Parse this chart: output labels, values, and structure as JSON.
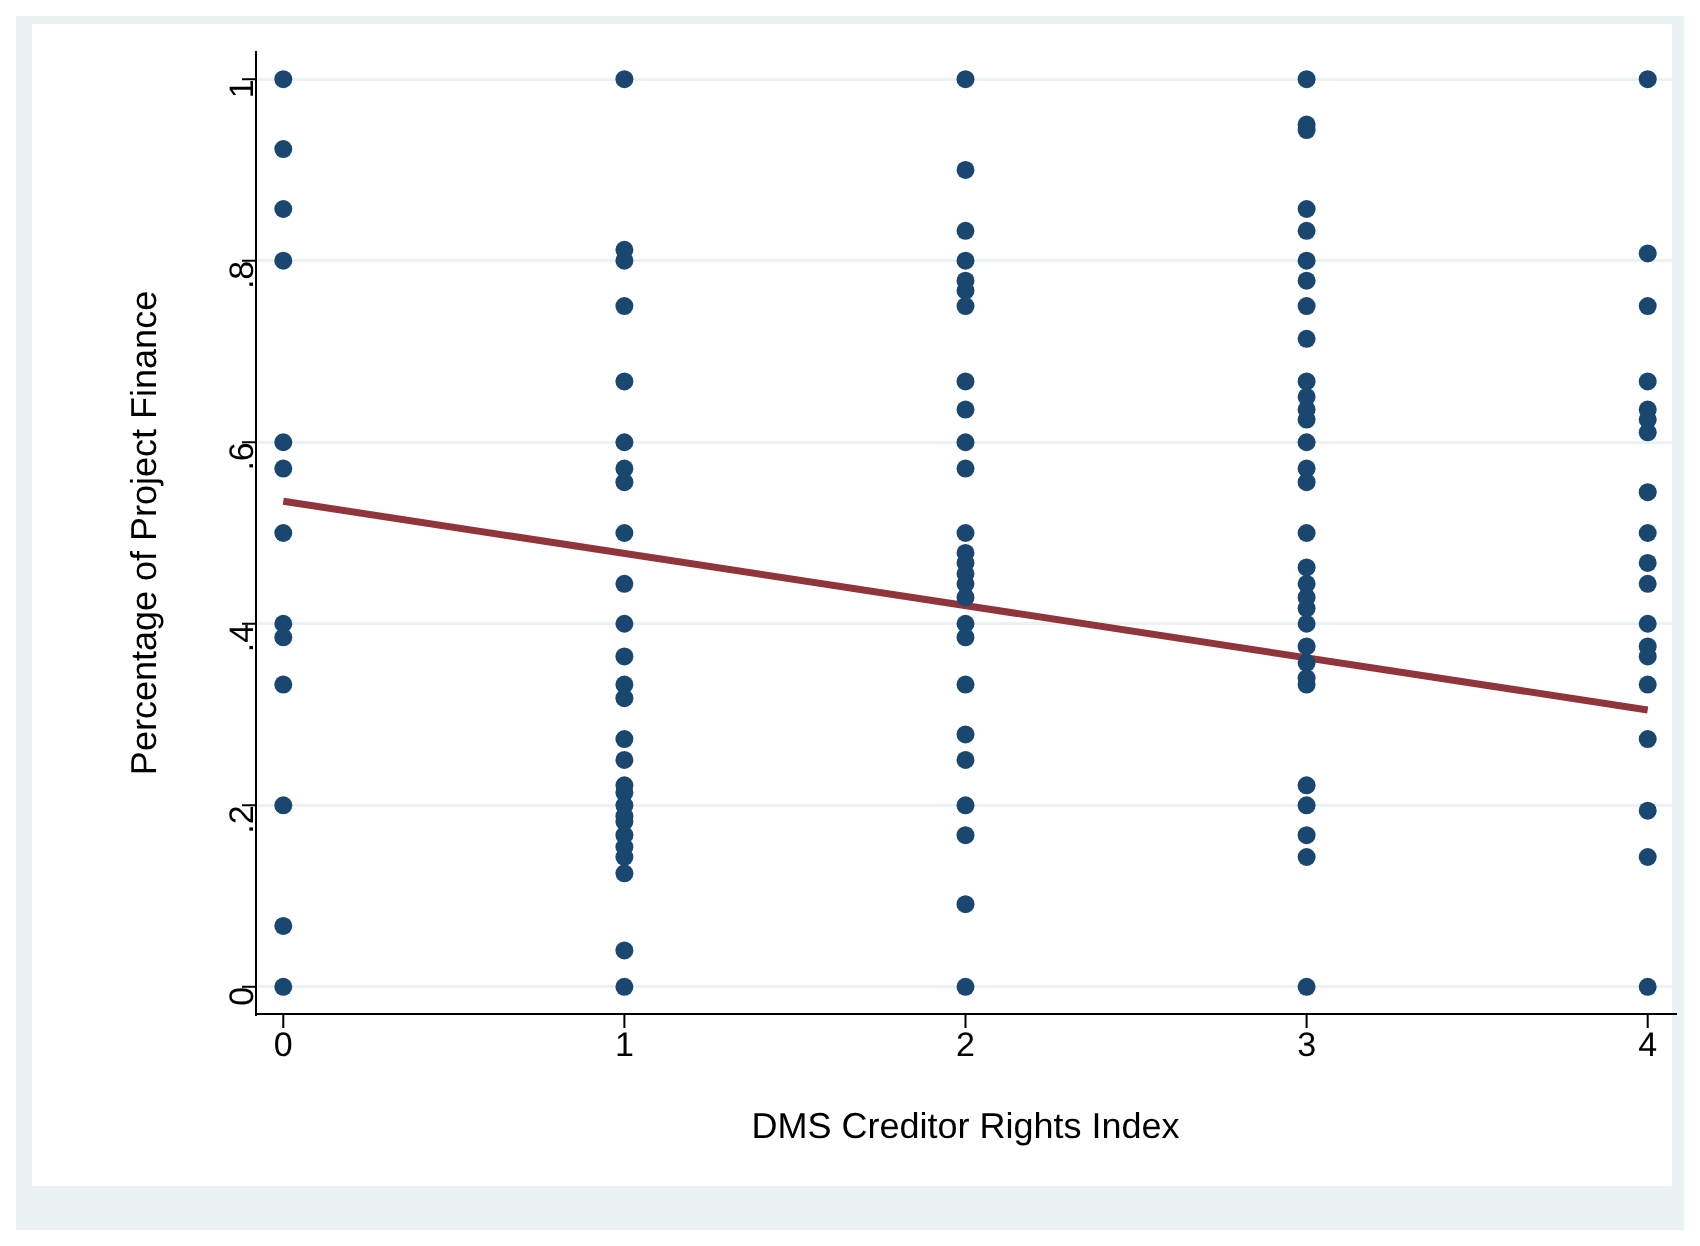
{
  "chart_data": {
    "type": "scatter",
    "xlabel": "DMS Creditor Rights Index",
    "ylabel": "Percentage of Project Finance",
    "xlim": [
      -0.08,
      4.08
    ],
    "ylim": [
      -0.03,
      1.03
    ],
    "xticks": [
      0,
      1,
      2,
      3,
      4
    ],
    "yticks": [
      0,
      {
        "value": 0.2,
        "label": ".2"
      },
      {
        "value": 0.4,
        "label": ".4"
      },
      {
        "value": 0.6,
        "label": ".6"
      },
      {
        "value": 0.8,
        "label": ".8"
      },
      1
    ],
    "grid": "y",
    "legend": false,
    "marker": "circle",
    "series": [
      {
        "color": "#1a476f",
        "x": [
          0,
          0,
          0,
          0,
          0,
          0,
          0,
          0,
          0,
          0,
          0,
          0,
          0,
          1,
          1,
          1,
          1,
          1,
          1,
          1,
          1,
          1,
          1,
          1,
          1,
          1,
          1,
          1,
          1,
          1,
          1,
          1,
          1,
          1,
          1,
          1,
          1,
          1,
          1,
          1,
          2,
          2,
          2,
          2,
          2,
          2,
          2,
          2,
          2,
          2,
          2,
          2,
          2,
          2,
          2,
          2,
          2,
          2,
          2,
          2,
          2,
          2,
          2,
          2,
          2,
          2,
          3,
          3,
          3,
          3,
          3,
          3,
          3,
          3,
          3,
          3,
          3,
          3,
          3,
          3,
          3,
          3,
          3,
          3,
          3,
          3,
          3,
          3,
          3,
          3,
          3,
          3,
          3,
          3,
          3,
          3,
          3,
          4,
          4,
          4,
          4,
          4,
          4,
          4,
          4,
          4,
          4,
          4,
          4,
          4,
          4,
          4,
          4,
          4,
          4,
          4
        ],
        "values": [
          1,
          0.923,
          0.857,
          0.8,
          0.6,
          0.571,
          0.5,
          0.4,
          0.385,
          0.333,
          0.2,
          0.067,
          0,
          1,
          0.812,
          0.8,
          0.75,
          0.667,
          0.6,
          0.571,
          0.556,
          0.5,
          0.444,
          0.4,
          0.364,
          0.333,
          0.318,
          0.273,
          0.25,
          0.222,
          0.214,
          0.2,
          0.188,
          0.182,
          0.167,
          0.154,
          0.143,
          0.125,
          0.04,
          0,
          1,
          0.9,
          0.833,
          0.8,
          0.778,
          0.767,
          0.75,
          0.667,
          0.636,
          0.6,
          0.571,
          0.5,
          0.478,
          0.467,
          0.455,
          0.444,
          0.429,
          0.4,
          0.385,
          0.333,
          0.278,
          0.25,
          0.2,
          0.167,
          0.091,
          0,
          1,
          0.95,
          0.944,
          0.857,
          0.833,
          0.8,
          0.778,
          0.75,
          0.714,
          0.667,
          0.65,
          0.636,
          0.625,
          0.6,
          0.571,
          0.556,
          0.5,
          0.462,
          0.444,
          0.429,
          0.417,
          0.4,
          0.375,
          0.357,
          0.34,
          0.333,
          0.222,
          0.2,
          0.167,
          0.143,
          0,
          1,
          0.808,
          0.75,
          0.667,
          0.636,
          0.625,
          0.611,
          0.545,
          0.5,
          0.467,
          0.444,
          0.4,
          0.375,
          0.364,
          0.333,
          0.273,
          0.194,
          0.143,
          0
        ]
      },
      {
        "type": "line",
        "color": "#90353b",
        "marker": "none",
        "x": [
          0,
          4
        ],
        "values": [
          0.535,
          0.305
        ]
      }
    ]
  }
}
